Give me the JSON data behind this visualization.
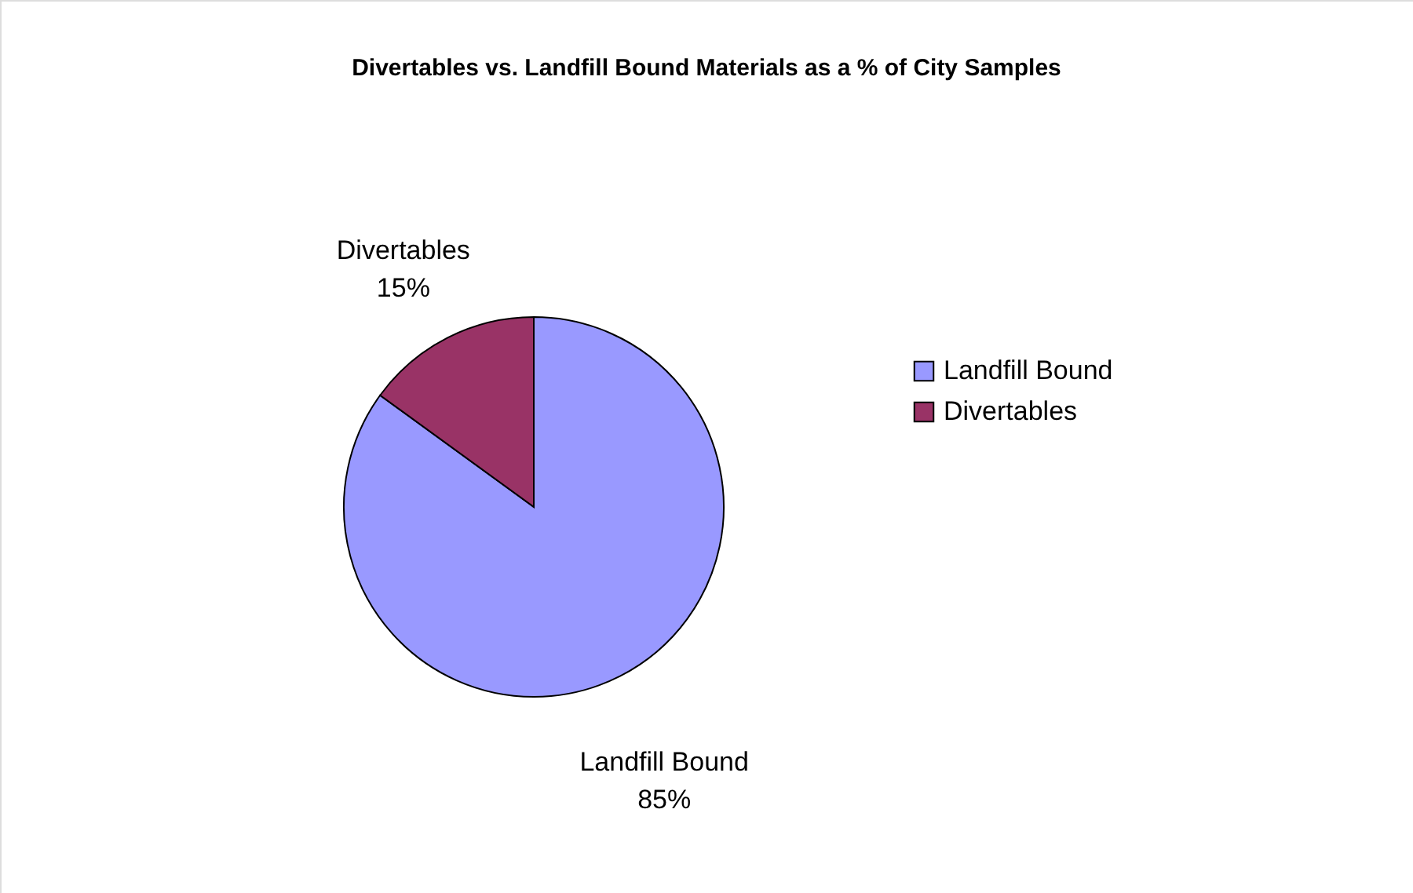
{
  "chart_data": {
    "type": "pie",
    "title": "Divertables vs. Landfill Bound Materials as a % of City Samples",
    "categories": [
      "Landfill Bound",
      "Divertables"
    ],
    "values": [
      85,
      15
    ],
    "colors": [
      "#9999ff",
      "#993366"
    ],
    "value_labels": [
      "85%",
      "15%"
    ],
    "legend": "right"
  }
}
